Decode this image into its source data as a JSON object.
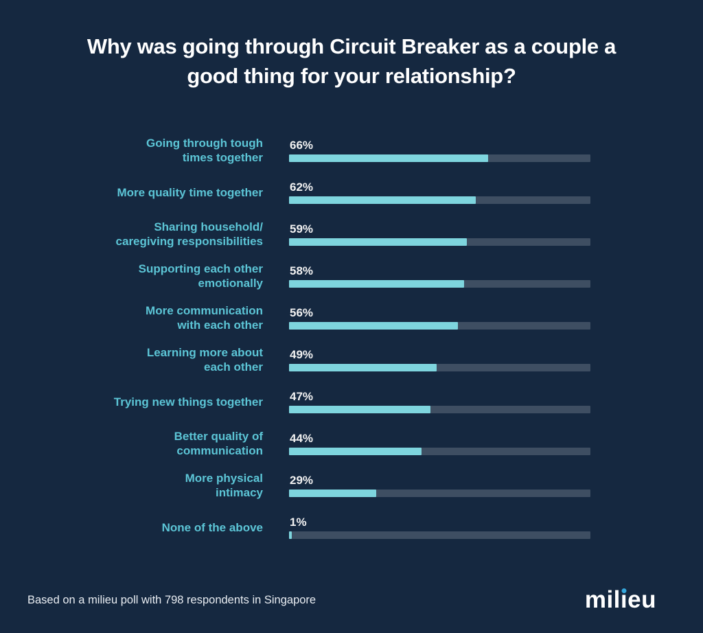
{
  "page": {
    "title": "Why was going through Circuit Breaker as a couple a\ngood thing for your relationship?"
  },
  "chart_data": {
    "type": "bar",
    "orientation": "horizontal",
    "title": "Why was going through Circuit Breaker as a couple a good thing for your relationship?",
    "categories": [
      "Going through tough\ntimes together",
      "More quality time together",
      "Sharing household/\ncaregiving responsibilities",
      "Supporting each other\nemotionally",
      "More communication\nwith each other",
      "Learning more about\neach other",
      "Trying new things together",
      "Better quality of\ncommunication",
      "More physical\nintimacy",
      "None of the above"
    ],
    "values": [
      66,
      62,
      59,
      58,
      56,
      49,
      47,
      44,
      29,
      1
    ],
    "value_suffix": "%",
    "xlim": [
      0,
      100
    ],
    "grid": false,
    "legend": false,
    "source_note": "Based on a milieu poll with 798 respondents in Singapore"
  },
  "footer": {
    "note": "Based on a milieu poll with 798 respondents in Singapore",
    "logo": {
      "full_text": "milieu",
      "prefix": "mil",
      "dotless_i": "ı",
      "suffix": "eu"
    }
  },
  "colors": {
    "background": "#152840",
    "title_text": "#ffffff",
    "category_label": "#5cc5d6",
    "value_label": "#f2f2f2",
    "bar_fill": "#7ed5de",
    "bar_track": "#3e4e62",
    "footer_text": "#e9edf2",
    "logo_text": "#ffffff",
    "logo_dot": "#35a7dc"
  }
}
